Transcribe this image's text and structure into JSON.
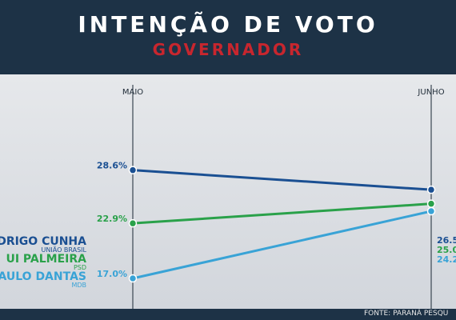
{
  "header": {
    "title": "INTENÇÃO DE VOTO",
    "subtitle": "GOVERNADOR"
  },
  "footer": {
    "source": "FONTE: PARANÁ PESQU"
  },
  "chart_data": {
    "type": "line",
    "title": "INTENÇÃO DE VOTO",
    "subtitle": "GOVERNADOR",
    "categories": [
      "MAIO",
      "JUNHO"
    ],
    "ylim": [
      14,
      32
    ],
    "grid": false,
    "series": [
      {
        "name": "RODRIGO CUNHA",
        "name_visible": "ODRIGO CUNHA",
        "party": "UNIÃO BRASIL",
        "values": [
          28.6,
          26.5
        ],
        "labels": [
          "28.6%",
          "26.5"
        ],
        "color": "#1a4f92"
      },
      {
        "name": "RUI PALMEIRA",
        "name_visible": "UI PALMEIRA",
        "party": "PSD",
        "values": [
          22.9,
          25.0
        ],
        "labels": [
          "22.9%",
          "25.0"
        ],
        "color": "#2aa14a"
      },
      {
        "name": "PAULO DANTAS",
        "name_visible": "AULO DANTAS",
        "party": "MDB",
        "values": [
          17.0,
          24.2
        ],
        "labels": [
          "17.0%",
          "24.2"
        ],
        "color": "#39a3d6"
      }
    ]
  }
}
